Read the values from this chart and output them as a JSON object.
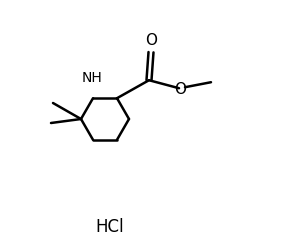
{
  "background_color": "#ffffff",
  "line_color": "#000000",
  "line_width": 1.8,
  "font_size_label": 10,
  "font_size_hcl": 12,
  "hcl_text": "HCl",
  "nh_label": "NH",
  "o_carbonyl": "O",
  "o_ester": "O"
}
